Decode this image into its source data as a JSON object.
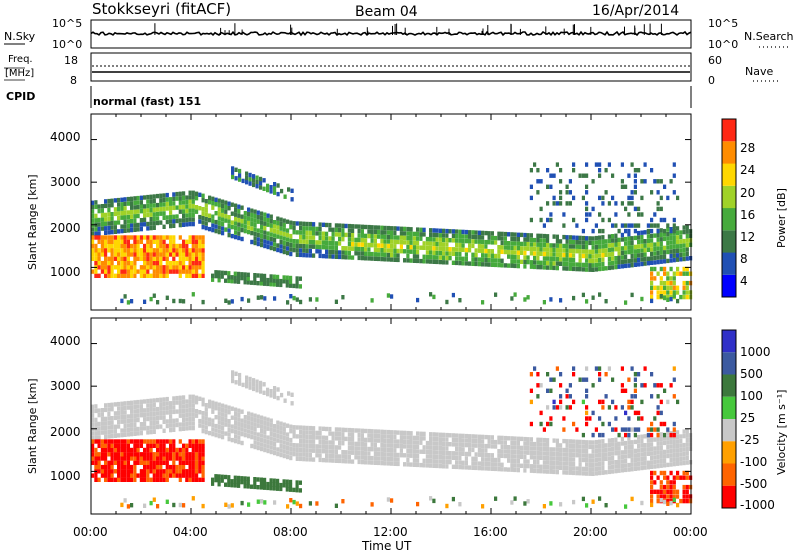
{
  "header": {
    "station": "Stokkseyri (fitACF)",
    "beam": "Beam 04",
    "date": "16/Apr/2014"
  },
  "colors": {
    "power_scale": [
      "#0000ff",
      "#2050b4",
      "#3c7846",
      "#46aa3c",
      "#a0d228",
      "#ffd700",
      "#ff8c00",
      "#ff2814"
    ],
    "velocity_scale": [
      "#3030c8",
      "#3c5aa0",
      "#3c783c",
      "#46c83c",
      "#c8c8c8",
      "#ffa000",
      "#ff6400",
      "#ff0000"
    ]
  },
  "noise_panel": {
    "left_label": "N.Sky",
    "right_label": "N.Search",
    "left_ticks": [
      "10^5",
      "10^0"
    ],
    "right_ticks": [
      "10^5",
      "10^0"
    ]
  },
  "freq_panel": {
    "left_label_1": "Freq.",
    "left_label_2": "[MHz]",
    "right_label": "Nave",
    "left_ticks": [
      "18",
      "8"
    ],
    "right_ticks": [
      "60",
      "0"
    ]
  },
  "cpid_panel": {
    "label": "CPID",
    "text": "normal (fast) 151"
  },
  "power_panel": {
    "ylabel": "Slant Range [km]",
    "yticks": [
      "4000",
      "3000",
      "2000",
      "1000"
    ],
    "colorbar_label": "Power [dB]",
    "colorbar_ticks": [
      "28",
      "24",
      "20",
      "16",
      "12",
      "8",
      "4"
    ]
  },
  "velocity_panel": {
    "ylabel": "Slant Range [km]",
    "yticks": [
      "4000",
      "3000",
      "2000",
      "1000"
    ],
    "colorbar_label": "Velocity [m s⁻¹]",
    "colorbar_ticks": [
      "1000",
      "500",
      "100",
      "25",
      "-25",
      "-100",
      "-500",
      "-1000"
    ]
  },
  "xaxis": {
    "label": "Time UT",
    "ticks": [
      "00:00",
      "04:00",
      "08:00",
      "12:00",
      "16:00",
      "20:00",
      "00:00"
    ]
  },
  "chart_data": [
    {
      "type": "heatmap",
      "name": "power",
      "xlim": [
        0,
        24
      ],
      "ylim": [
        0,
        4600
      ],
      "colorbar_range": [
        0,
        32
      ],
      "regions": [
        {
          "t": [
            0,
            4.5
          ],
          "r": [
            800,
            1700
          ],
          "level": 22
        },
        {
          "t": [
            0,
            8
          ],
          "r": [
            1900,
            2450
          ],
          "level": 9
        },
        {
          "t": [
            4,
            22
          ],
          "r": [
            1200,
            2200
          ],
          "level": 12
        },
        {
          "t": [
            10,
            22
          ],
          "r": [
            1100,
            1400
          ],
          "level": 18
        },
        {
          "t": [
            18,
            22
          ],
          "r": [
            1700,
            3200
          ],
          "level": 6
        },
        {
          "t": [
            22.5,
            24
          ],
          "r": [
            200,
            2400
          ],
          "level": 14
        }
      ]
    },
    {
      "type": "heatmap",
      "name": "velocity",
      "xlim": [
        0,
        24
      ],
      "ylim": [
        0,
        4600
      ],
      "colorbar_range": [
        -1000,
        1000
      ],
      "regions": [
        {
          "t": [
            0,
            4.5
          ],
          "r": [
            800,
            1700
          ],
          "v": -500
        },
        {
          "t": [
            0,
            24
          ],
          "r": [
            1100,
            2500
          ],
          "v": 0
        },
        {
          "t": [
            3.5,
            4.5
          ],
          "r": [
            1050,
            1550
          ],
          "v": 100
        },
        {
          "t": [
            4.8,
            8.5
          ],
          "r": [
            500,
            800
          ],
          "v": 100
        },
        {
          "t": [
            22,
            24
          ],
          "r": [
            300,
            1000
          ],
          "v": -300
        }
      ]
    }
  ]
}
